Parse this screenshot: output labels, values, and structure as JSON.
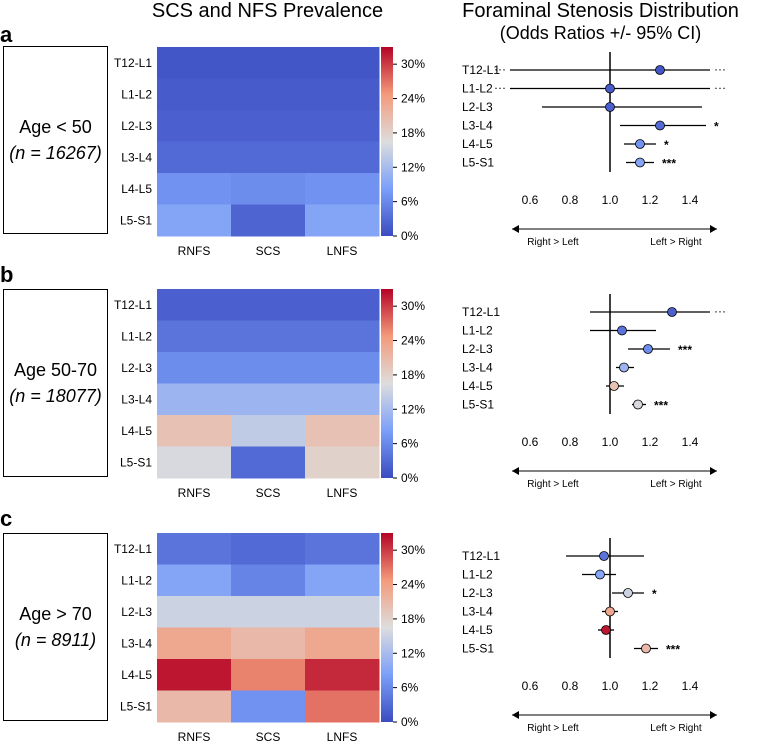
{
  "titles": {
    "heatmap": "SCS and NFS Prevalence",
    "forest_line1": "Foraminal Stenosis Distribution",
    "forest_line2": "(Odds Ratios +/- 95% CI)"
  },
  "panels": [
    {
      "letter": "a",
      "age": "Age < 50",
      "n": "(n = 16267)"
    },
    {
      "letter": "b",
      "age": "Age 50-70",
      "n": "(n = 18077)"
    },
    {
      "letter": "c",
      "age": "Age > 70",
      "n": "(n = 8911)"
    }
  ],
  "colorbar": {
    "ticks": [
      "0%",
      "6%",
      "12%",
      "18%",
      "24%",
      "30%"
    ]
  },
  "forest_axis": {
    "ticks": [
      "0.6",
      "0.8",
      "1.0",
      "1.2",
      "1.4"
    ],
    "left_label": "Right > Left",
    "right_label": "Left > Right"
  },
  "chart_data": [
    {
      "type": "heatmap",
      "panel": "a",
      "title": "SCS and NFS Prevalence",
      "rows": [
        "T12-L1",
        "L1-L2",
        "L2-L3",
        "L3-L4",
        "L4-L5",
        "L5-S1"
      ],
      "columns": [
        "RNFS",
        "SCS",
        "LNFS"
      ],
      "values": [
        [
          1,
          1,
          1
        ],
        [
          1.5,
          1.5,
          1.5
        ],
        [
          2,
          2,
          2
        ],
        [
          3,
          3,
          3
        ],
        [
          7,
          6.5,
          7
        ],
        [
          9,
          2.5,
          9
        ]
      ],
      "colorbar_range": [
        0,
        33
      ],
      "colorbar_ticks": [
        "0%",
        "6%",
        "12%",
        "18%",
        "24%",
        "30%"
      ]
    },
    {
      "type": "forest",
      "panel": "a",
      "title": "Foraminal Stenosis Distribution (Odds Ratios +/- 95% CI)",
      "levels": [
        "T12-L1",
        "L1-L2",
        "L2-L3",
        "L3-L4",
        "L4-L5",
        "L5-S1"
      ],
      "odds_ratio": [
        1.25,
        1.0,
        1.0,
        1.25,
        1.15,
        1.15
      ],
      "ci_low": [
        0.5,
        0.5,
        0.66,
        1.05,
        1.07,
        1.08
      ],
      "ci_high": [
        1.5,
        1.5,
        1.46,
        1.48,
        1.23,
        1.22
      ],
      "truncated_left": [
        true,
        true,
        false,
        false,
        false,
        false
      ],
      "truncated_right": [
        true,
        true,
        false,
        false,
        false,
        false
      ],
      "significance": [
        "",
        "",
        "",
        "*",
        "*",
        "***"
      ],
      "marker_percent": [
        1,
        1.5,
        2,
        3,
        7,
        9
      ],
      "xlim": [
        0.55,
        1.5
      ],
      "xticks": [
        0.6,
        0.8,
        1.0,
        1.2,
        1.4
      ],
      "xlabel_left": "Right > Left",
      "xlabel_right": "Left > Right"
    },
    {
      "type": "heatmap",
      "panel": "b",
      "title": "SCS and NFS Prevalence",
      "rows": [
        "T12-L1",
        "L1-L2",
        "L2-L3",
        "L3-L4",
        "L4-L5",
        "L5-S1"
      ],
      "columns": [
        "RNFS",
        "SCS",
        "LNFS"
      ],
      "values": [
        [
          2,
          2,
          2
        ],
        [
          4,
          4,
          4
        ],
        [
          6.5,
          6.5,
          6.5
        ],
        [
          11,
          11,
          11
        ],
        [
          20,
          14,
          20
        ],
        [
          16,
          3,
          18
        ]
      ],
      "colorbar_range": [
        0,
        33
      ],
      "colorbar_ticks": [
        "0%",
        "6%",
        "12%",
        "18%",
        "24%",
        "30%"
      ]
    },
    {
      "type": "forest",
      "panel": "b",
      "title": "Foraminal Stenosis Distribution (Odds Ratios +/- 95% CI)",
      "levels": [
        "T12-L1",
        "L1-L2",
        "L2-L3",
        "L3-L4",
        "L4-L5",
        "L5-S1"
      ],
      "odds_ratio": [
        1.31,
        1.06,
        1.19,
        1.07,
        1.02,
        1.14
      ],
      "ci_low": [
        0.9,
        0.9,
        1.09,
        1.03,
        0.98,
        1.11
      ],
      "ci_high": [
        1.5,
        1.23,
        1.3,
        1.12,
        1.07,
        1.18
      ],
      "truncated_left": [
        false,
        false,
        false,
        false,
        false,
        false
      ],
      "truncated_right": [
        true,
        false,
        false,
        false,
        false,
        false
      ],
      "significance": [
        "",
        "",
        "***",
        "",
        "",
        "***"
      ],
      "marker_percent": [
        2,
        4,
        6.5,
        11,
        20,
        16
      ],
      "xlim": [
        0.55,
        1.5
      ],
      "xticks": [
        0.6,
        0.8,
        1.0,
        1.2,
        1.4
      ],
      "xlabel_left": "Right > Left",
      "xlabel_right": "Left > Right"
    },
    {
      "type": "heatmap",
      "panel": "c",
      "title": "SCS and NFS Prevalence",
      "rows": [
        "T12-L1",
        "L1-L2",
        "L2-L3",
        "L3-L4",
        "L4-L5",
        "L5-S1"
      ],
      "columns": [
        "RNFS",
        "SCS",
        "LNFS"
      ],
      "values": [
        [
          4,
          3,
          4
        ],
        [
          9,
          5.5,
          9
        ],
        [
          15,
          15,
          15
        ],
        [
          23,
          21,
          23
        ],
        [
          32,
          26,
          31
        ],
        [
          21,
          7,
          27
        ]
      ],
      "colorbar_range": [
        0,
        33
      ],
      "colorbar_ticks": [
        "0%",
        "6%",
        "12%",
        "18%",
        "24%",
        "30%"
      ]
    },
    {
      "type": "forest",
      "panel": "c",
      "title": "Foraminal Stenosis Distribution (Odds Ratios +/- 95% CI)",
      "levels": [
        "T12-L1",
        "L1-L2",
        "L2-L3",
        "L3-L4",
        "L4-L5",
        "L5-S1"
      ],
      "odds_ratio": [
        0.97,
        0.95,
        1.09,
        1.0,
        0.98,
        1.18
      ],
      "ci_low": [
        0.78,
        0.86,
        1.01,
        0.96,
        0.94,
        1.12
      ],
      "ci_high": [
        1.17,
        1.03,
        1.17,
        1.04,
        1.02,
        1.24
      ],
      "truncated_left": [
        false,
        false,
        false,
        false,
        false,
        false
      ],
      "truncated_right": [
        false,
        false,
        false,
        false,
        false,
        false
      ],
      "significance": [
        "",
        "",
        "*",
        "",
        "",
        "***"
      ],
      "marker_percent": [
        4,
        9,
        15,
        23,
        32,
        21
      ],
      "xlim": [
        0.55,
        1.5
      ],
      "xticks": [
        0.6,
        0.8,
        1.0,
        1.2,
        1.4
      ],
      "xlabel_left": "Right > Left",
      "xlabel_right": "Left > Right"
    }
  ]
}
